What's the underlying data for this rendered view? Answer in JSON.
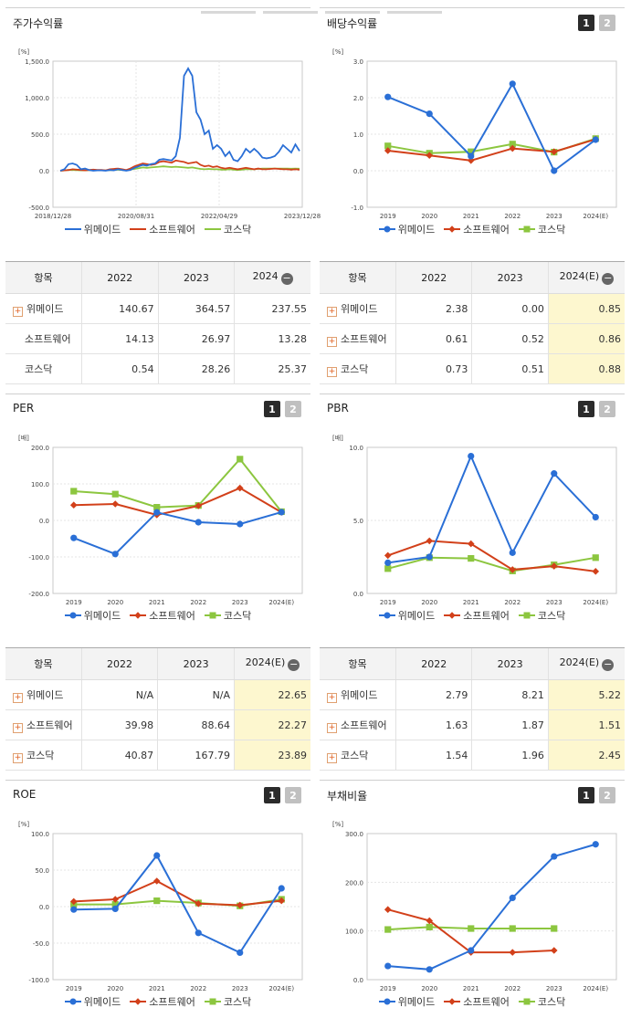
{
  "colors": {
    "wemade": "#2a6fd6",
    "software": "#d2401a",
    "kosdaq": "#8cc63f"
  },
  "legend": [
    "위메이드",
    "소프트웨어",
    "코스닥"
  ],
  "tabs": [
    "1",
    "2"
  ],
  "panels": {
    "stock": {
      "title": "주가수익률",
      "unit": "[%]"
    },
    "dividend": {
      "title": "배당수익률",
      "unit": "[%]"
    },
    "per": {
      "title": "PER",
      "unit": "[배]"
    },
    "pbr": {
      "title": "PBR",
      "unit": "[배]"
    },
    "roe": {
      "title": "ROE",
      "unit": "[%]"
    },
    "debt": {
      "title": "부채비율",
      "unit": "[%]"
    }
  },
  "tables": {
    "stock": {
      "head": [
        "항목",
        "2022",
        "2023",
        "2024"
      ],
      "rows": [
        [
          "위메이드",
          "140.67",
          "364.57",
          "237.55"
        ],
        [
          "소프트웨어",
          "14.13",
          "26.97",
          "13.28"
        ],
        [
          "코스닥",
          "0.54",
          "28.26",
          "25.37"
        ]
      ]
    },
    "dividend": {
      "head": [
        "항목",
        "2022",
        "2023",
        "2024(E)"
      ],
      "rows": [
        [
          "위메이드",
          "2.38",
          "0.00",
          "0.85"
        ],
        [
          "소프트웨어",
          "0.61",
          "0.52",
          "0.86"
        ],
        [
          "코스닥",
          "0.73",
          "0.51",
          "0.88"
        ]
      ]
    },
    "per": {
      "head": [
        "항목",
        "2022",
        "2023",
        "2024(E)"
      ],
      "rows": [
        [
          "위메이드",
          "N/A",
          "N/A",
          "22.65"
        ],
        [
          "소프트웨어",
          "39.98",
          "88.64",
          "22.27"
        ],
        [
          "코스닥",
          "40.87",
          "167.79",
          "23.89"
        ]
      ]
    },
    "pbr": {
      "head": [
        "항목",
        "2022",
        "2023",
        "2024(E)"
      ],
      "rows": [
        [
          "위메이드",
          "2.79",
          "8.21",
          "5.22"
        ],
        [
          "소프트웨어",
          "1.63",
          "1.87",
          "1.51"
        ],
        [
          "코스닥",
          "1.54",
          "1.96",
          "2.45"
        ]
      ]
    }
  },
  "chart_data": [
    {
      "id": "stock",
      "type": "line",
      "title": "주가수익률",
      "x_ticks": [
        "2018/12/28",
        "2020/08/31",
        "2022/04/29",
        "2023/12/28"
      ],
      "y_ticks": [
        "1,500.0",
        "1,000.0",
        "500.0",
        "0.0",
        "-500.0"
      ],
      "ylim": [
        -500,
        1500
      ],
      "series": [
        {
          "name": "위메이드",
          "values": [
            0,
            20,
            90,
            100,
            80,
            20,
            30,
            10,
            0,
            5,
            5,
            0,
            10,
            5,
            20,
            10,
            0,
            10,
            40,
            60,
            80,
            70,
            90,
            100,
            150,
            160,
            150,
            140,
            200,
            450,
            1300,
            1400,
            1300,
            800,
            700,
            500,
            550,
            300,
            350,
            300,
            200,
            260,
            150,
            130,
            200,
            300,
            250,
            300,
            250,
            180,
            170,
            180,
            200,
            260,
            350,
            300,
            250,
            360,
            270
          ]
        },
        {
          "name": "소프트웨어",
          "values": [
            0,
            5,
            10,
            20,
            15,
            10,
            5,
            10,
            15,
            10,
            10,
            5,
            20,
            25,
            30,
            20,
            10,
            30,
            60,
            80,
            100,
            90,
            80,
            90,
            120,
            130,
            120,
            110,
            140,
            130,
            120,
            100,
            110,
            120,
            80,
            60,
            70,
            50,
            60,
            40,
            30,
            40,
            30,
            20,
            30,
            40,
            30,
            20,
            30,
            20,
            20,
            25,
            30,
            25,
            20,
            20,
            15,
            20,
            15
          ]
        },
        {
          "name": "코스닥",
          "values": [
            0,
            5,
            10,
            10,
            8,
            5,
            5,
            8,
            10,
            5,
            5,
            5,
            8,
            10,
            15,
            10,
            5,
            15,
            25,
            35,
            45,
            40,
            45,
            50,
            55,
            60,
            55,
            50,
            55,
            50,
            45,
            40,
            45,
            35,
            25,
            20,
            25,
            20,
            20,
            15,
            15,
            20,
            15,
            10,
            15,
            20,
            20,
            20,
            25,
            30,
            30,
            30,
            30,
            30,
            30,
            30,
            28,
            30,
            28
          ]
        }
      ]
    },
    {
      "id": "dividend",
      "type": "line",
      "title": "배당수익률",
      "categories": [
        "2019",
        "2020",
        "2021",
        "2022",
        "2023",
        "2024(E)"
      ],
      "y_ticks": [
        "3.0",
        "2.0",
        "1.0",
        "0.0",
        "-1.0"
      ],
      "ylim": [
        -1,
        3
      ],
      "series": [
        {
          "name": "위메이드",
          "values": [
            2.02,
            1.56,
            0.4,
            2.38,
            0.0,
            0.85
          ]
        },
        {
          "name": "소프트웨어",
          "values": [
            0.55,
            0.42,
            0.28,
            0.61,
            0.52,
            0.86
          ]
        },
        {
          "name": "코스닥",
          "values": [
            0.68,
            0.48,
            0.52,
            0.73,
            0.51,
            0.88
          ]
        }
      ]
    },
    {
      "id": "per",
      "type": "line",
      "title": "PER",
      "categories": [
        "2019",
        "2020",
        "2021",
        "2022",
        "2023",
        "2024(E)"
      ],
      "y_ticks": [
        "200.0",
        "100.0",
        "0.0",
        "-100.0",
        "-200.0"
      ],
      "ylim": [
        -200,
        200
      ],
      "series": [
        {
          "name": "위메이드",
          "values": [
            -48,
            -92,
            22,
            -5,
            -10,
            22.65
          ]
        },
        {
          "name": "소프트웨어",
          "values": [
            42,
            45,
            15,
            39.98,
            88.64,
            22.27
          ]
        },
        {
          "name": "코스닥",
          "values": [
            80,
            72,
            36,
            40.87,
            167.79,
            23.89
          ]
        }
      ]
    },
    {
      "id": "pbr",
      "type": "line",
      "title": "PBR",
      "categories": [
        "2019",
        "2020",
        "2021",
        "2022",
        "2023",
        "2024(E)"
      ],
      "y_ticks": [
        "10.0",
        "5.0",
        "0.0"
      ],
      "ylim": [
        0,
        10
      ],
      "series": [
        {
          "name": "위메이드",
          "values": [
            2.1,
            2.5,
            9.4,
            2.79,
            8.21,
            5.22
          ]
        },
        {
          "name": "소프트웨어",
          "values": [
            2.6,
            3.6,
            3.4,
            1.63,
            1.87,
            1.51
          ]
        },
        {
          "name": "코스닥",
          "values": [
            1.7,
            2.45,
            2.4,
            1.54,
            1.96,
            2.45
          ]
        }
      ]
    },
    {
      "id": "roe",
      "type": "line",
      "title": "ROE",
      "categories": [
        "2019",
        "2020",
        "2021",
        "2022",
        "2023",
        "2024(E)"
      ],
      "y_ticks": [
        "100.0",
        "50.0",
        "0.0",
        "-50.0",
        "-100.0"
      ],
      "ylim": [
        -100,
        100
      ],
      "series": [
        {
          "name": "위메이드",
          "values": [
            -4,
            -3,
            70,
            -36,
            -63,
            25
          ]
        },
        {
          "name": "소프트웨어",
          "values": [
            7,
            10,
            35,
            4,
            2,
            8
          ]
        },
        {
          "name": "코스닥",
          "values": [
            3,
            3,
            8,
            5,
            1,
            10
          ]
        }
      ]
    },
    {
      "id": "debt",
      "type": "line",
      "title": "부채비율",
      "categories": [
        "2019",
        "2020",
        "2021",
        "2022",
        "2023",
        "2024(E)"
      ],
      "y_ticks": [
        "300.0",
        "200.0",
        "100.0",
        "0.0"
      ],
      "ylim": [
        0,
        300
      ],
      "series": [
        {
          "name": "위메이드",
          "values": [
            28,
            21,
            60,
            168,
            253,
            278
          ]
        },
        {
          "name": "소프트웨어",
          "values": [
            144,
            121,
            56,
            56,
            60,
            null
          ]
        },
        {
          "name": "코스닥",
          "values": [
            103,
            108,
            105,
            105,
            105,
            null
          ]
        }
      ]
    }
  ]
}
